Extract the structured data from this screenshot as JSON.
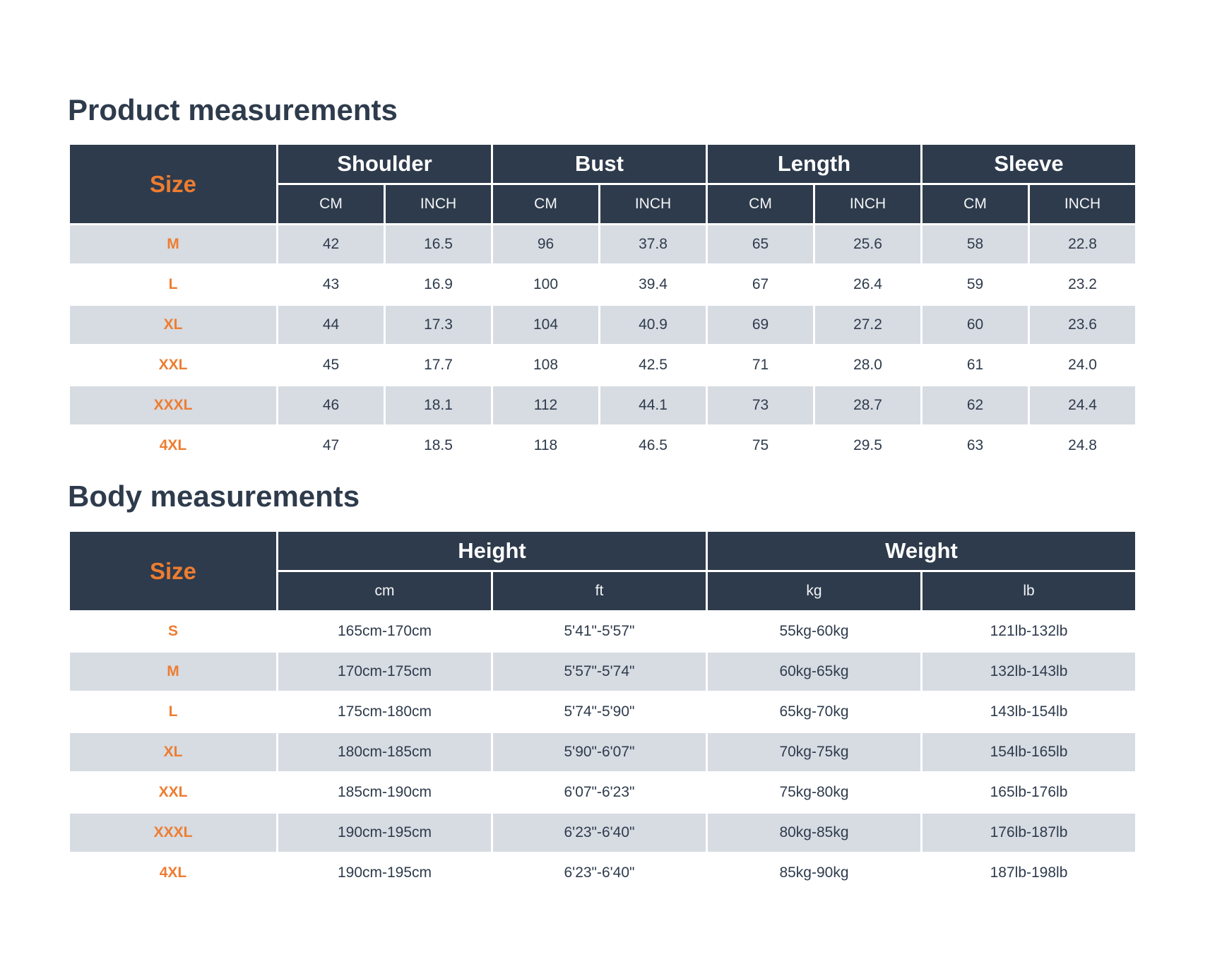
{
  "colors": {
    "header_bg": "#2e3b4c",
    "row_band": "#d7dbe2",
    "accent_orange": "#ed7d31",
    "text_dark": "#2e3b4c",
    "page_bg": "#ffffff"
  },
  "product_table": {
    "title": "Product measurements",
    "size_header": "Size",
    "groups": [
      {
        "label": "Shoulder",
        "sub": [
          "CM",
          "INCH"
        ]
      },
      {
        "label": "Bust",
        "sub": [
          "CM",
          "INCH"
        ]
      },
      {
        "label": "Length",
        "sub": [
          "CM",
          "INCH"
        ]
      },
      {
        "label": "Sleeve",
        "sub": [
          "CM",
          "INCH"
        ]
      }
    ],
    "rows": [
      {
        "size": "M",
        "values": [
          "42",
          "16.5",
          "96",
          "37.8",
          "65",
          "25.6",
          "58",
          "22.8"
        ]
      },
      {
        "size": "L",
        "values": [
          "43",
          "16.9",
          "100",
          "39.4",
          "67",
          "26.4",
          "59",
          "23.2"
        ]
      },
      {
        "size": "XL",
        "values": [
          "44",
          "17.3",
          "104",
          "40.9",
          "69",
          "27.2",
          "60",
          "23.6"
        ]
      },
      {
        "size": "XXL",
        "values": [
          "45",
          "17.7",
          "108",
          "42.5",
          "71",
          "28.0",
          "61",
          "24.0"
        ]
      },
      {
        "size": "XXXL",
        "values": [
          "46",
          "18.1",
          "112",
          "44.1",
          "73",
          "28.7",
          "62",
          "24.4"
        ]
      },
      {
        "size": "4XL",
        "values": [
          "47",
          "18.5",
          "118",
          "46.5",
          "75",
          "29.5",
          "63",
          "24.8"
        ]
      }
    ]
  },
  "body_table": {
    "title": "Body measurements",
    "size_header": "Size",
    "groups": [
      {
        "label": "Height",
        "sub": [
          "cm",
          "ft"
        ]
      },
      {
        "label": "Weight",
        "sub": [
          "kg",
          "lb"
        ]
      }
    ],
    "rows": [
      {
        "size": "S",
        "values": [
          "165cm-170cm",
          "5'41\"-5'57\"",
          "55kg-60kg",
          "121lb-132lb"
        ]
      },
      {
        "size": "M",
        "values": [
          "170cm-175cm",
          "5'57\"-5'74\"",
          "60kg-65kg",
          "132lb-143lb"
        ]
      },
      {
        "size": "L",
        "values": [
          "175cm-180cm",
          "5'74\"-5'90\"",
          "65kg-70kg",
          "143lb-154lb"
        ]
      },
      {
        "size": "XL",
        "values": [
          "180cm-185cm",
          "5'90\"-6'07\"",
          "70kg-75kg",
          "154lb-165lb"
        ]
      },
      {
        "size": "XXL",
        "values": [
          "185cm-190cm",
          "6'07\"-6'23\"",
          "75kg-80kg",
          "165lb-176lb"
        ]
      },
      {
        "size": "XXXL",
        "values": [
          "190cm-195cm",
          "6'23\"-6'40\"",
          "80kg-85kg",
          "176lb-187lb"
        ]
      },
      {
        "size": "4XL",
        "values": [
          "190cm-195cm",
          "6'23\"-6'40\"",
          "85kg-90kg",
          "187lb-198lb"
        ]
      }
    ]
  }
}
